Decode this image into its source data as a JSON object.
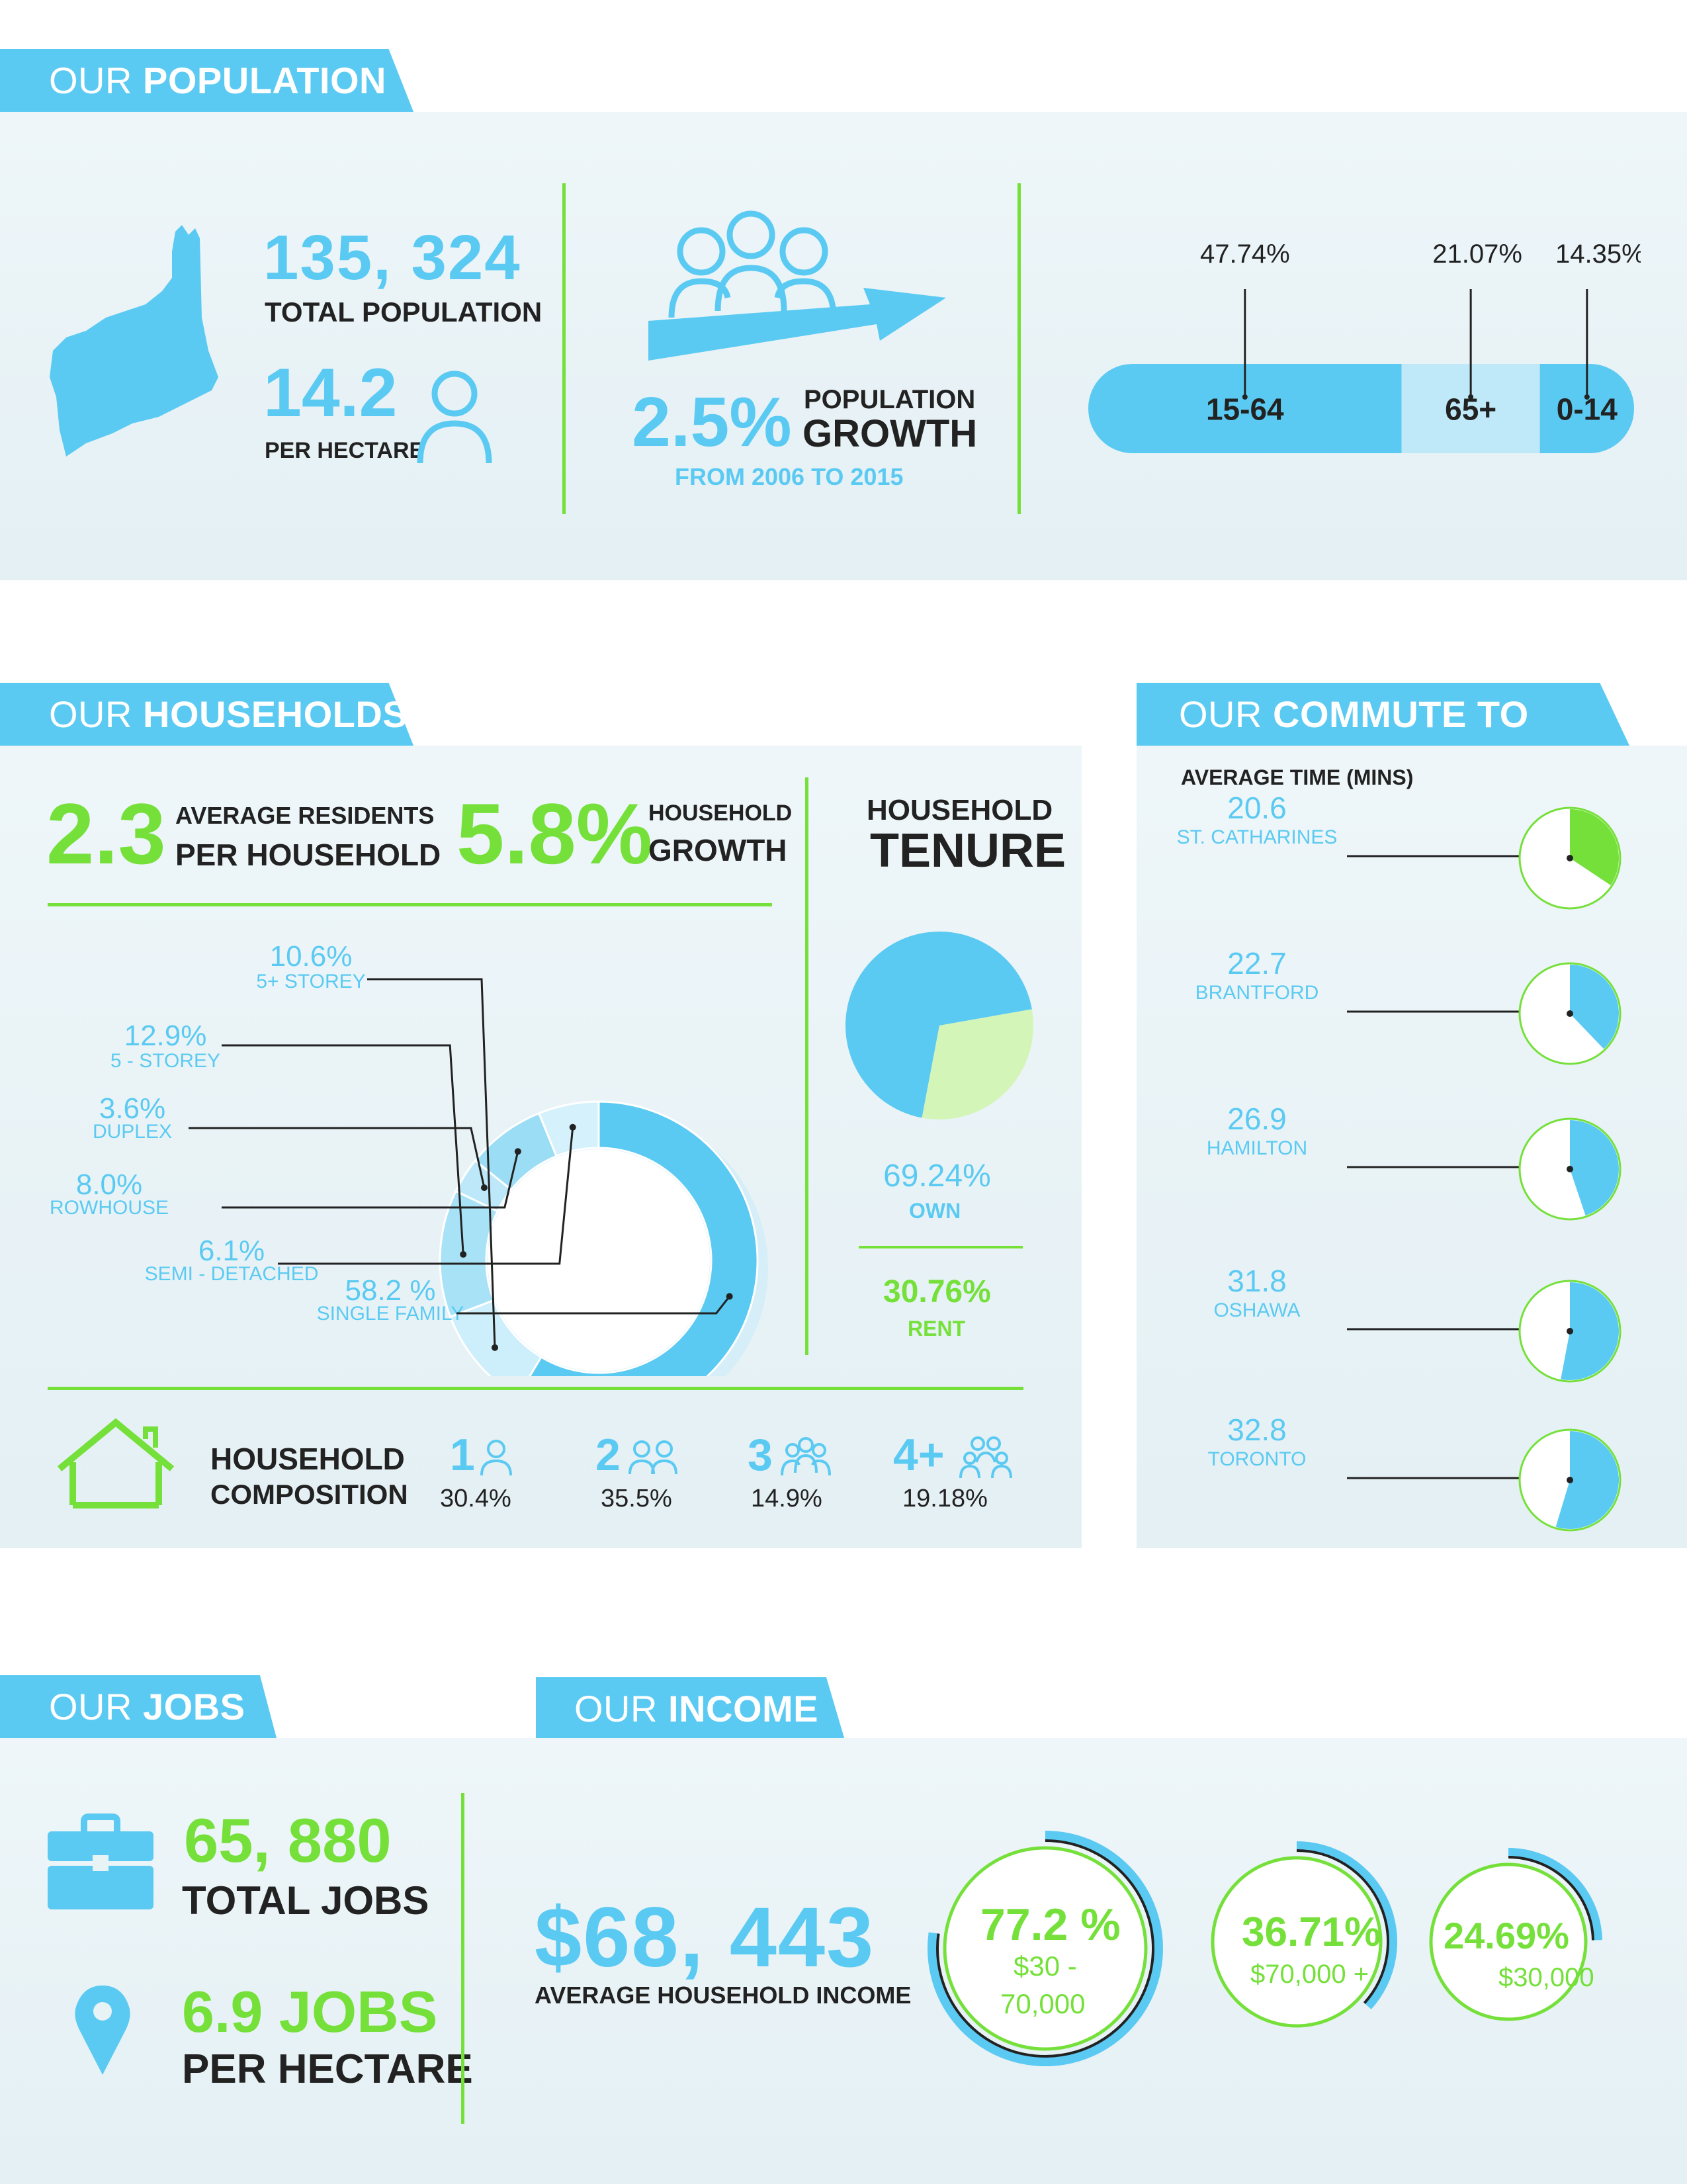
{
  "sections": {
    "population": {
      "prefix": "OUR",
      "title": "POPULATION"
    },
    "households": {
      "prefix": "OUR",
      "title": "HOUSEHOLDS"
    },
    "commute": {
      "prefix": "OUR",
      "title": "COMMUTE TO WORK"
    },
    "jobs": {
      "prefix": "OUR",
      "title": "JOBS"
    },
    "income": {
      "prefix": "OUR",
      "title": "INCOME"
    }
  },
  "population": {
    "total_value": "135, 324",
    "total_label": "TOTAL POPULATION",
    "density_value": "14.2",
    "density_label": "PER HECTARE",
    "growth_value": "2.5%",
    "growth_label_1": "POPULATION",
    "growth_label_2": "GROWTH",
    "growth_period": "FROM 2006 TO 2015"
  },
  "households": {
    "avg_residents_value": "2.3",
    "avg_residents_label_1": "AVERAGE RESIDENTS",
    "avg_residents_label_2": "PER HOUSEHOLD",
    "growth_value": "5.8%",
    "growth_label_1": "HOUSEHOLD",
    "growth_label_2": "GROWTH",
    "tenure_title_1": "HOUSEHOLD",
    "tenure_title_2": "TENURE",
    "own_value": "69.24%",
    "own_label": "OWN",
    "rent_value": "30.76%",
    "rent_label": "RENT",
    "composition_label_1": "HOUSEHOLD",
    "composition_label_2": "COMPOSITION",
    "composition": [
      {
        "size": "1",
        "value": "30.4%"
      },
      {
        "size": "2",
        "value": "35.5%"
      },
      {
        "size": "3",
        "value": "14.9%"
      },
      {
        "size": "4+",
        "value": "19.18%"
      }
    ]
  },
  "commute": {
    "subtitle": "AVERAGE TIME (MINS)"
  },
  "jobs": {
    "total_value": "65, 880",
    "total_label": "TOTAL JOBS",
    "density_value": "6.9 JOBS",
    "density_label": "PER HECTARE"
  },
  "income": {
    "average_value": "$68, 443",
    "average_label": "AVERAGE HOUSEHOLD INCOME",
    "rings": [
      {
        "value": "77.2 %",
        "label_1": "$30 -",
        "label_2": "70,000"
      },
      {
        "value": "36.71%",
        "label_1": "$70,000 +",
        "label_2": ""
      },
      {
        "value": "24.69%",
        "label_1": "$30,000",
        "label_2": ""
      }
    ]
  },
  "colors": {
    "blue": "#5bcaf2",
    "light_blue": "#bfe9f8",
    "green": "#76e03b",
    "light_green": "#d4f5b8",
    "text_dark": "#222222",
    "panel": "#e8f3f6"
  },
  "chart_data": [
    {
      "type": "bar",
      "orientation": "horizontal-stacked",
      "categories": [
        "15-64",
        "65+",
        "0-14"
      ],
      "values": [
        47.74,
        21.07,
        14.35
      ],
      "value_labels": [
        "47.74%",
        "21.07%",
        "14.35%"
      ]
    },
    {
      "type": "pie",
      "variant": "donut",
      "categories": [
        "5+ STOREY",
        "5 - STOREY",
        "DUPLEX",
        "ROWHOUSE",
        "SEMI - DETACHED",
        "SINGLE FAMILY"
      ],
      "values": [
        10.6,
        12.9,
        3.6,
        8.0,
        6.1,
        58.2
      ],
      "value_labels": [
        "10.6%",
        "12.9%",
        "3.6%",
        "8.0%",
        "6.1%",
        "58.2 %"
      ]
    },
    {
      "type": "pie",
      "categories": [
        "OWN",
        "RENT"
      ],
      "values": [
        69.24,
        30.76
      ]
    },
    {
      "type": "pie",
      "variant": "small-multiples",
      "categories": [
        "ST. CATHARINES",
        "BRANTFORD",
        "HAMILTON",
        "OSHAWA",
        "TORONTO"
      ],
      "values": [
        20.6,
        22.7,
        26.9,
        31.8,
        32.8
      ],
      "value_labels": [
        "20.6",
        "22.7",
        "26.9",
        "31.8",
        "32.8"
      ]
    },
    {
      "type": "pie",
      "variant": "ring-gauge",
      "categories": [
        "$30 - 70,000",
        "$70,000 +",
        "$30,000"
      ],
      "values": [
        77.2,
        36.71,
        24.69
      ]
    }
  ]
}
